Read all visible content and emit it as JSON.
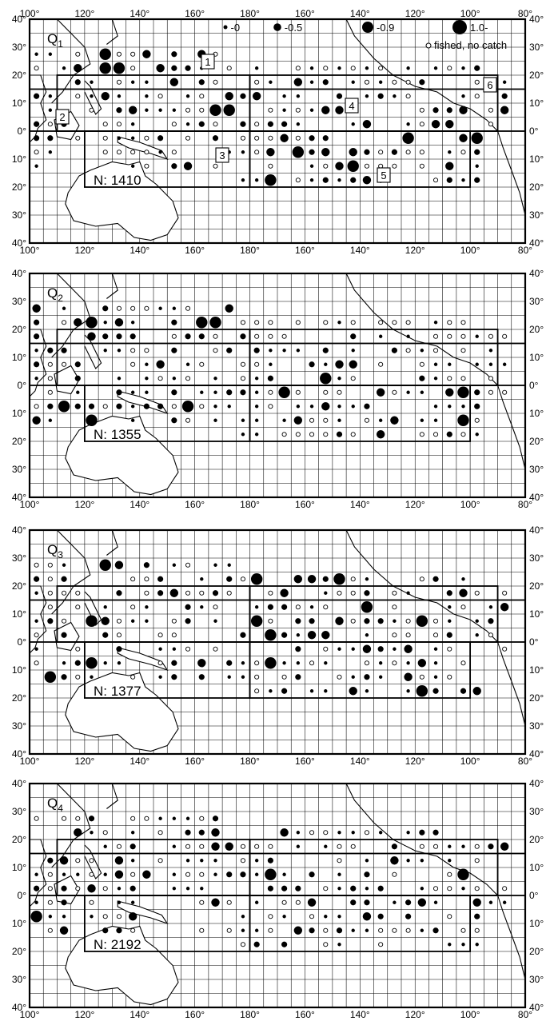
{
  "legend": {
    "items": [
      "-0",
      "-0.5",
      "-0.9",
      "1.0-"
    ],
    "no_catch": "fished, no catch"
  },
  "lon_labels": [
    "100°",
    "120°",
    "140°",
    "160°",
    "180°",
    "160°",
    "140°",
    "120°",
    "100°",
    "80°"
  ],
  "lat_labels": [
    "40°",
    "30°",
    "20°",
    "10°",
    "0°",
    "10°",
    "20°",
    "30°",
    "40°"
  ],
  "area_labels": [
    "1",
    "2",
    "3",
    "4",
    "5",
    "6"
  ],
  "panels": [
    {
      "label": "Q",
      "sub": "1",
      "n_text": "N: 1410"
    },
    {
      "label": "Q",
      "sub": "2",
      "n_text": "N: 1355"
    },
    {
      "label": "Q",
      "sub": "3",
      "n_text": "N: 1377"
    },
    {
      "label": "Q",
      "sub": "4",
      "n_text": "N: 2192"
    }
  ]
}
